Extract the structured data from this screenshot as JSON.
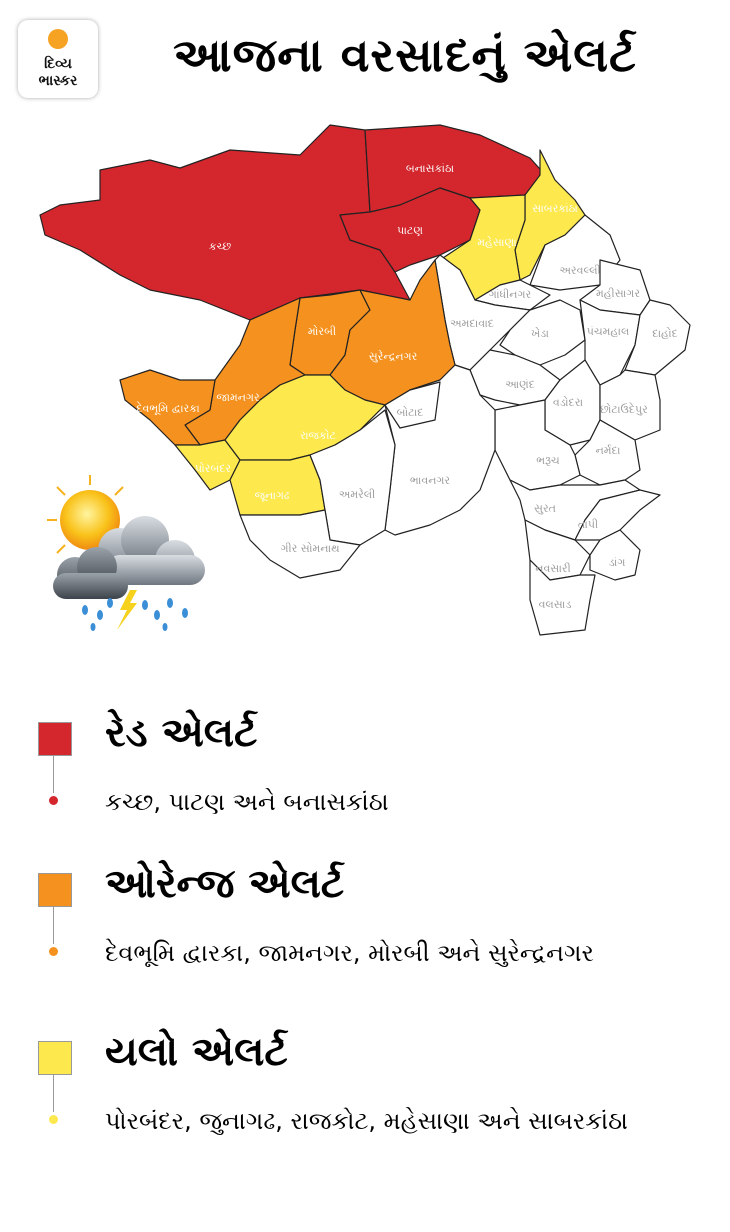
{
  "logo": {
    "line1": "દિવ્ય",
    "line2": "ભાસ્કર"
  },
  "title": "આજના વરસાદનું એલર્ટ",
  "colors": {
    "red": "#d3272d",
    "orange": "#f5921f",
    "yellow": "#fde84e",
    "none": "#ffffff"
  },
  "districts": [
    {
      "name": "કચ્છ",
      "alert": "red"
    },
    {
      "name": "બનાસકાંઠા",
      "alert": "red"
    },
    {
      "name": "પાટણ",
      "alert": "red"
    },
    {
      "name": "સાબરકાંઠા",
      "alert": "yellow"
    },
    {
      "name": "મહેસાણા",
      "alert": "yellow"
    },
    {
      "name": "અરવલ્લી",
      "alert": "none"
    },
    {
      "name": "ગાંધીનગર",
      "alert": "none"
    },
    {
      "name": "મહીસાગર",
      "alert": "none"
    },
    {
      "name": "અમદાવાદ",
      "alert": "none"
    },
    {
      "name": "ખેડા",
      "alert": "none"
    },
    {
      "name": "પંચમહાલ",
      "alert": "none"
    },
    {
      "name": "દાહોદ",
      "alert": "none"
    },
    {
      "name": "આણંદ",
      "alert": "none"
    },
    {
      "name": "વડોદરા",
      "alert": "none"
    },
    {
      "name": "છોટાઉદેપુર",
      "alert": "none"
    },
    {
      "name": "નર્મદા",
      "alert": "none"
    },
    {
      "name": "ભરૂચ",
      "alert": "none"
    },
    {
      "name": "સુરત",
      "alert": "none"
    },
    {
      "name": "તાપી",
      "alert": "none"
    },
    {
      "name": "નવસારી",
      "alert": "none"
    },
    {
      "name": "ડાંગ",
      "alert": "none"
    },
    {
      "name": "વલસાડ",
      "alert": "none"
    },
    {
      "name": "મોરબી",
      "alert": "orange"
    },
    {
      "name": "સુરેન્દ્રનગર",
      "alert": "orange"
    },
    {
      "name": "જામનગર",
      "alert": "orange"
    },
    {
      "name": "દેવભૂમિ દ્વારકા",
      "alert": "orange"
    },
    {
      "name": "પોરબંદર",
      "alert": "yellow"
    },
    {
      "name": "રાજકોટ",
      "alert": "yellow"
    },
    {
      "name": "જૂનાગઢ",
      "alert": "yellow"
    },
    {
      "name": "ભાવનગર",
      "alert": "none"
    },
    {
      "name": "અમરેલી",
      "alert": "none"
    },
    {
      "name": "બોટાદ",
      "alert": "none"
    },
    {
      "name": "ગીર સોમનાથ",
      "alert": "none"
    }
  ],
  "legend": [
    {
      "title": "રેડ એલર્ટ",
      "districts": "કચ્છ, પાટણ અને બનાસકાંઠા",
      "color": "#d3272d"
    },
    {
      "title": "ઓરેન્જ એલર્ટ",
      "districts": "દેવભૂમિ દ્વારકા, જામનગર, મોરબી અને સુરેન્દ્રનગર",
      "color": "#f5921f"
    },
    {
      "title": "યલો એલર્ટ",
      "districts": "પોરબંદર, જુનાગઢ, રાજકોટ, મહેસાણા અને સાબરકાંઠા",
      "color": "#fde84e"
    }
  ]
}
